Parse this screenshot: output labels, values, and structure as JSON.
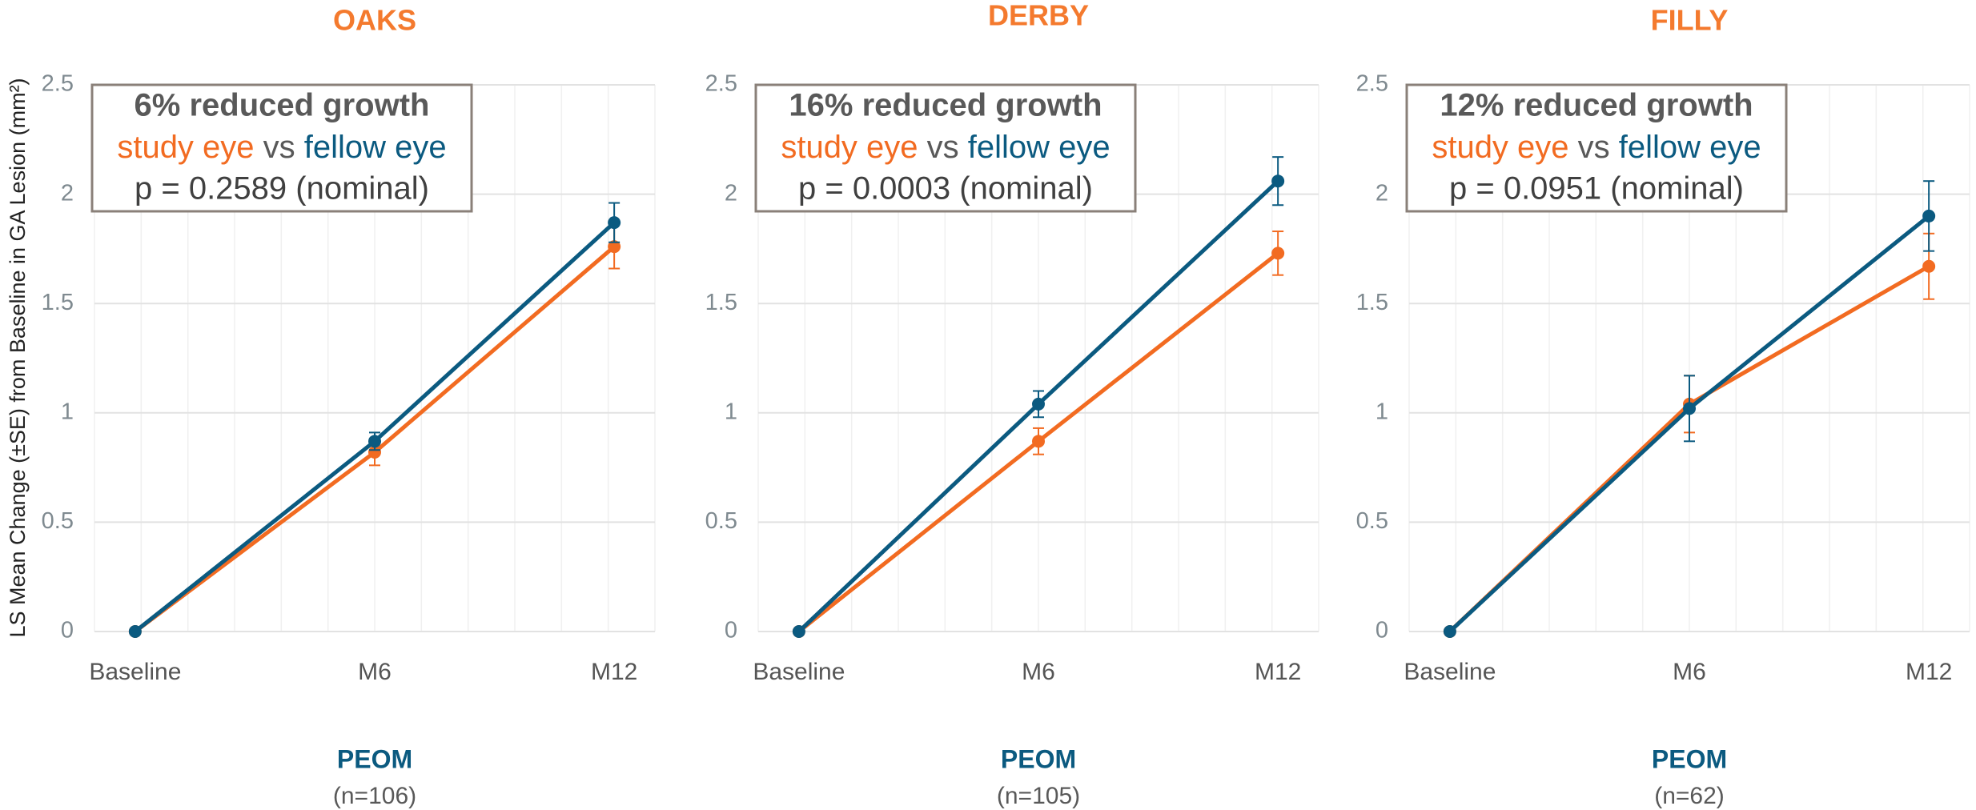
{
  "chart_data": [
    {
      "type": "line",
      "title": "OAKS",
      "xlabel": "PEOM",
      "subtitle": "(n=106)",
      "ylabel": "LS Mean Change (±SE) from Baseline in GA Lesion (mm²)",
      "categories": [
        "Baseline",
        "M6",
        "M12"
      ],
      "series": [
        {
          "name": "study eye",
          "color": "#f26b21",
          "values": [
            0,
            0.82,
            1.76
          ],
          "errors": [
            0,
            0.06,
            0.1
          ]
        },
        {
          "name": "fellow eye",
          "color": "#0b5a80",
          "values": [
            0,
            0.87,
            1.87
          ],
          "errors": [
            0,
            0.04,
            0.09
          ]
        }
      ],
      "annotation": {
        "headline": "6% reduced growth",
        "connector": "vs",
        "pvalue": "p = 0.2589 (nominal)"
      },
      "ylim": [
        0,
        2.5
      ],
      "yticks": [
        0,
        0.5,
        1,
        1.5,
        2,
        2.5
      ],
      "grid": true
    },
    {
      "type": "line",
      "title": "DERBY",
      "xlabel": "PEOM",
      "subtitle": "(n=105)",
      "categories": [
        "Baseline",
        "M6",
        "M12"
      ],
      "series": [
        {
          "name": "study eye",
          "color": "#f26b21",
          "values": [
            0,
            0.87,
            1.73
          ],
          "errors": [
            0,
            0.06,
            0.1
          ]
        },
        {
          "name": "fellow eye",
          "color": "#0b5a80",
          "values": [
            0,
            1.04,
            2.06
          ],
          "errors": [
            0,
            0.06,
            0.11
          ]
        }
      ],
      "annotation": {
        "headline": "16% reduced growth",
        "connector": "vs",
        "pvalue": "p = 0.0003 (nominal)"
      },
      "ylim": [
        0,
        2.5
      ],
      "yticks": [
        0,
        0.5,
        1,
        1.5,
        2,
        2.5
      ],
      "grid": true
    },
    {
      "type": "line",
      "title": "FILLY",
      "xlabel": "PEOM",
      "subtitle": "(n=62)",
      "categories": [
        "Baseline",
        "M6",
        "M12"
      ],
      "series": [
        {
          "name": "study eye",
          "color": "#f26b21",
          "values": [
            0,
            1.04,
            1.67
          ],
          "errors": [
            0,
            0.13,
            0.15
          ]
        },
        {
          "name": "fellow eye",
          "color": "#0b5a80",
          "values": [
            0,
            1.02,
            1.9
          ],
          "errors": [
            0,
            0.15,
            0.16
          ]
        }
      ],
      "annotation": {
        "headline": "12% reduced growth",
        "connector": "vs",
        "pvalue": "p = 0.0951 (nominal)"
      },
      "ylim": [
        0,
        2.5
      ],
      "yticks": [
        0,
        0.5,
        1,
        1.5,
        2,
        2.5
      ],
      "grid": true
    }
  ]
}
